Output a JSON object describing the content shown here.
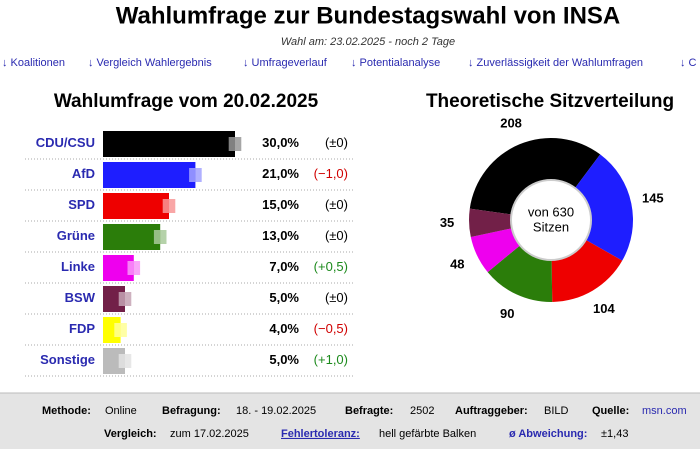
{
  "header": {
    "title": "Wahlumfrage zur Bundestagswahl von INSA",
    "subtitle": "Wahl am: 23.02.2025 - noch 2 Tage"
  },
  "nav": [
    "↓ Koalitionen",
    "↓ Vergleich Wahlergebnis",
    "↓ Umfrageverlauf",
    "↓ Potentialanalyse",
    "↓ Zuverlässigkeit der Wahlumfragen",
    "↓ C"
  ],
  "chart_data": [
    {
      "type": "bar",
      "title": "Wahlumfrage vom 20.02.2025",
      "categories": [
        "CDU/CSU",
        "AfD",
        "SPD",
        "Grüne",
        "Linke",
        "BSW",
        "FDP",
        "Sonstige"
      ],
      "values": [
        30.0,
        21.0,
        15.0,
        13.0,
        7.0,
        5.0,
        4.0,
        5.0
      ],
      "value_labels": [
        "30,0%",
        "21,0%",
        "15,0%",
        "13,0%",
        "7,0%",
        "5,0%",
        "4,0%",
        "5,0%"
      ],
      "change_values": [
        0,
        -1.0,
        0,
        0,
        0.5,
        0,
        -0.5,
        1.0
      ],
      "change_labels": [
        "(±0)",
        "(−1,0)",
        "(±0)",
        "(±0)",
        "(+0,5)",
        "(±0)",
        "(−0,5)",
        "(+1,0)"
      ],
      "colors": [
        "#000000",
        "#1e1eff",
        "#ee0000",
        "#2b7d0a",
        "#ee00ee",
        "#722048",
        "#ffff00",
        "#bbbbbb"
      ],
      "xlim": [
        0,
        35
      ]
    },
    {
      "type": "pie",
      "title": "Theoretische Sitzverteilung",
      "categories": [
        "CDU/CSU",
        "AfD",
        "SPD",
        "Grüne",
        "Linke",
        "BSW"
      ],
      "values": [
        208,
        145,
        104,
        90,
        48,
        35
      ],
      "colors": [
        "#000000",
        "#1e1eff",
        "#ee0000",
        "#2b7d0a",
        "#ee00ee",
        "#722048"
      ],
      "center_label": [
        "von 630",
        "Sitzen"
      ]
    }
  ],
  "footer": {
    "row1": [
      {
        "label": "Methode:",
        "value": "Online"
      },
      {
        "label": "Befragung:",
        "value": "18. - 19.02.2025"
      },
      {
        "label": "Befragte:",
        "value": "2502"
      },
      {
        "label": "Auftraggeber:",
        "value": "BILD"
      },
      {
        "label": "Quelle:",
        "value": "msn.com"
      }
    ],
    "row2": [
      {
        "label": "Vergleich:",
        "value": "zum 17.02.2025"
      },
      {
        "label": "Fehlertoleranz:",
        "value": "hell gefärbte Balken"
      },
      {
        "label": "ø Abweichung:",
        "value": {
          "value": 1.43,
          "label": "±1,43"
        }
      }
    ]
  }
}
